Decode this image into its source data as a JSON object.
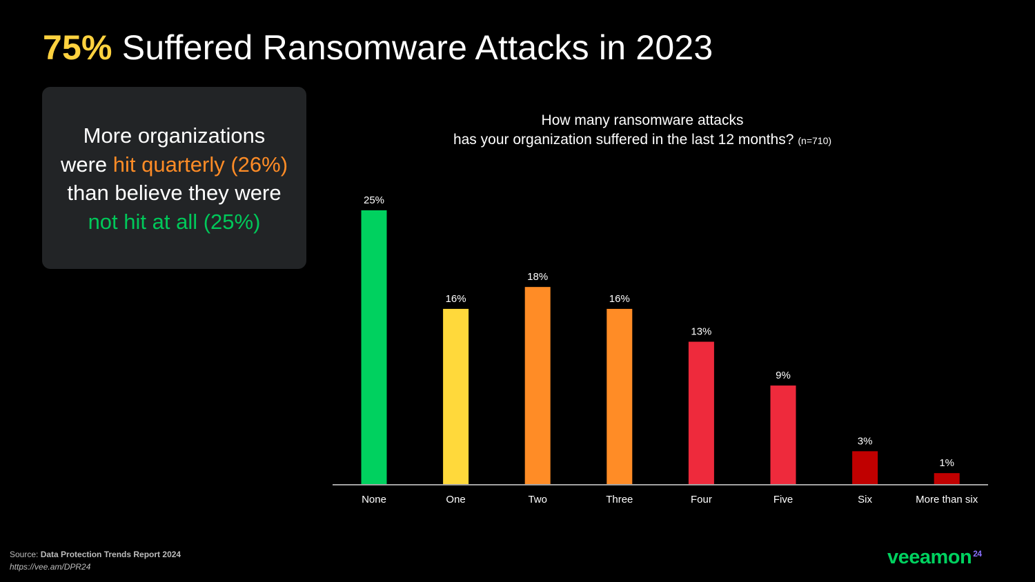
{
  "slide": {
    "title_highlight": "75%",
    "title_rest": " Suffered Ransomware Attacks in 2023"
  },
  "callout": {
    "line1": "More organizations",
    "line2_prefix": "were ",
    "line2_highlight": "hit quarterly (26%)",
    "line3": "than believe they were",
    "line4_highlight": "not hit at all (25%)",
    "highlight_colors": {
      "orange": "#ff8c26",
      "green": "#00c85a"
    }
  },
  "chart_data": {
    "type": "bar",
    "title_line1": "How many ransomware attacks",
    "title_line2": "has your organization suffered  in the last 12 months?",
    "title_note": "(n=710)",
    "categories": [
      "None",
      "One",
      "Two",
      "Three",
      "Four",
      "Five",
      "Six",
      "More than six"
    ],
    "values": [
      25,
      16,
      18,
      16,
      13,
      9,
      3,
      1
    ],
    "labels": [
      "25%",
      "16%",
      "18%",
      "16%",
      "13%",
      "9%",
      "3%",
      "1%"
    ],
    "colors": [
      "#00d15f",
      "#ffd93b",
      "#ff8c26",
      "#ff8c26",
      "#ee2a3c",
      "#ee2a3c",
      "#c00000",
      "#c00000"
    ],
    "unit": "%",
    "ylim": [
      0,
      25
    ],
    "grid": false,
    "legend": "none"
  },
  "footer": {
    "source_label": "Source:",
    "source_title": " Data Protection Trends Report 2024",
    "source_url": "https://vee.am/DPR24",
    "logo_text": "veeamon",
    "logo_suffix": "24"
  }
}
